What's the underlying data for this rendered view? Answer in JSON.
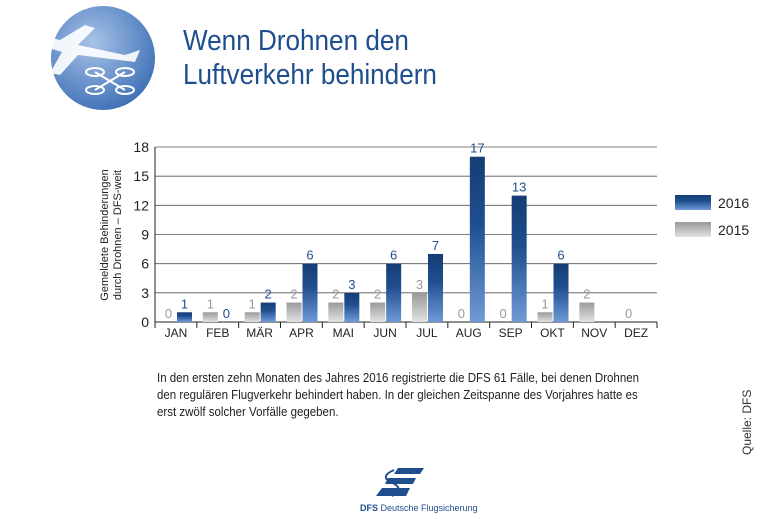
{
  "title_lines": [
    "Wenn Drohnen den",
    "Luftverkehr behindern"
  ],
  "caption_lines": [
    "In den ersten zehn Monaten des Jahres 2016 registrierte die DFS 61 Fälle, bei denen Drohnen",
    "den regulären Flugverkehr behindert haben. In der gleichen Zeitspanne des Vorjahres hatte es",
    "erst zwölf solcher Vorfälle gegeben."
  ],
  "source": "Quelle: DFS",
  "logo": {
    "abbr": "DFS",
    "name": "Deutsche Flugsicherung"
  },
  "colors": {
    "title": "#1f4e8f",
    "series_2016": "#1f4e8f",
    "series_2015": "#a9a9a9",
    "label_2015": "#9a9a9a"
  },
  "chart_data": {
    "type": "bar",
    "ylabel_lines": [
      "Gemeldete Behinderungen",
      "durch Drohnen – DFS-weit"
    ],
    "categories": [
      "JAN",
      "FEB",
      "MÄR",
      "APR",
      "MAI",
      "JUN",
      "JUL",
      "AUG",
      "SEP",
      "OKT",
      "NOV",
      "DEZ"
    ],
    "ylim": [
      0,
      18
    ],
    "yticks": [
      0,
      3,
      6,
      9,
      12,
      15,
      18
    ],
    "grid": true,
    "legend": "right",
    "series": [
      {
        "name": "2015",
        "values": [
          0,
          1,
          1,
          2,
          2,
          2,
          3,
          0,
          0,
          1,
          2,
          0
        ]
      },
      {
        "name": "2016",
        "values": [
          1,
          0,
          2,
          6,
          3,
          6,
          7,
          17,
          13,
          6,
          null,
          null
        ]
      }
    ]
  }
}
